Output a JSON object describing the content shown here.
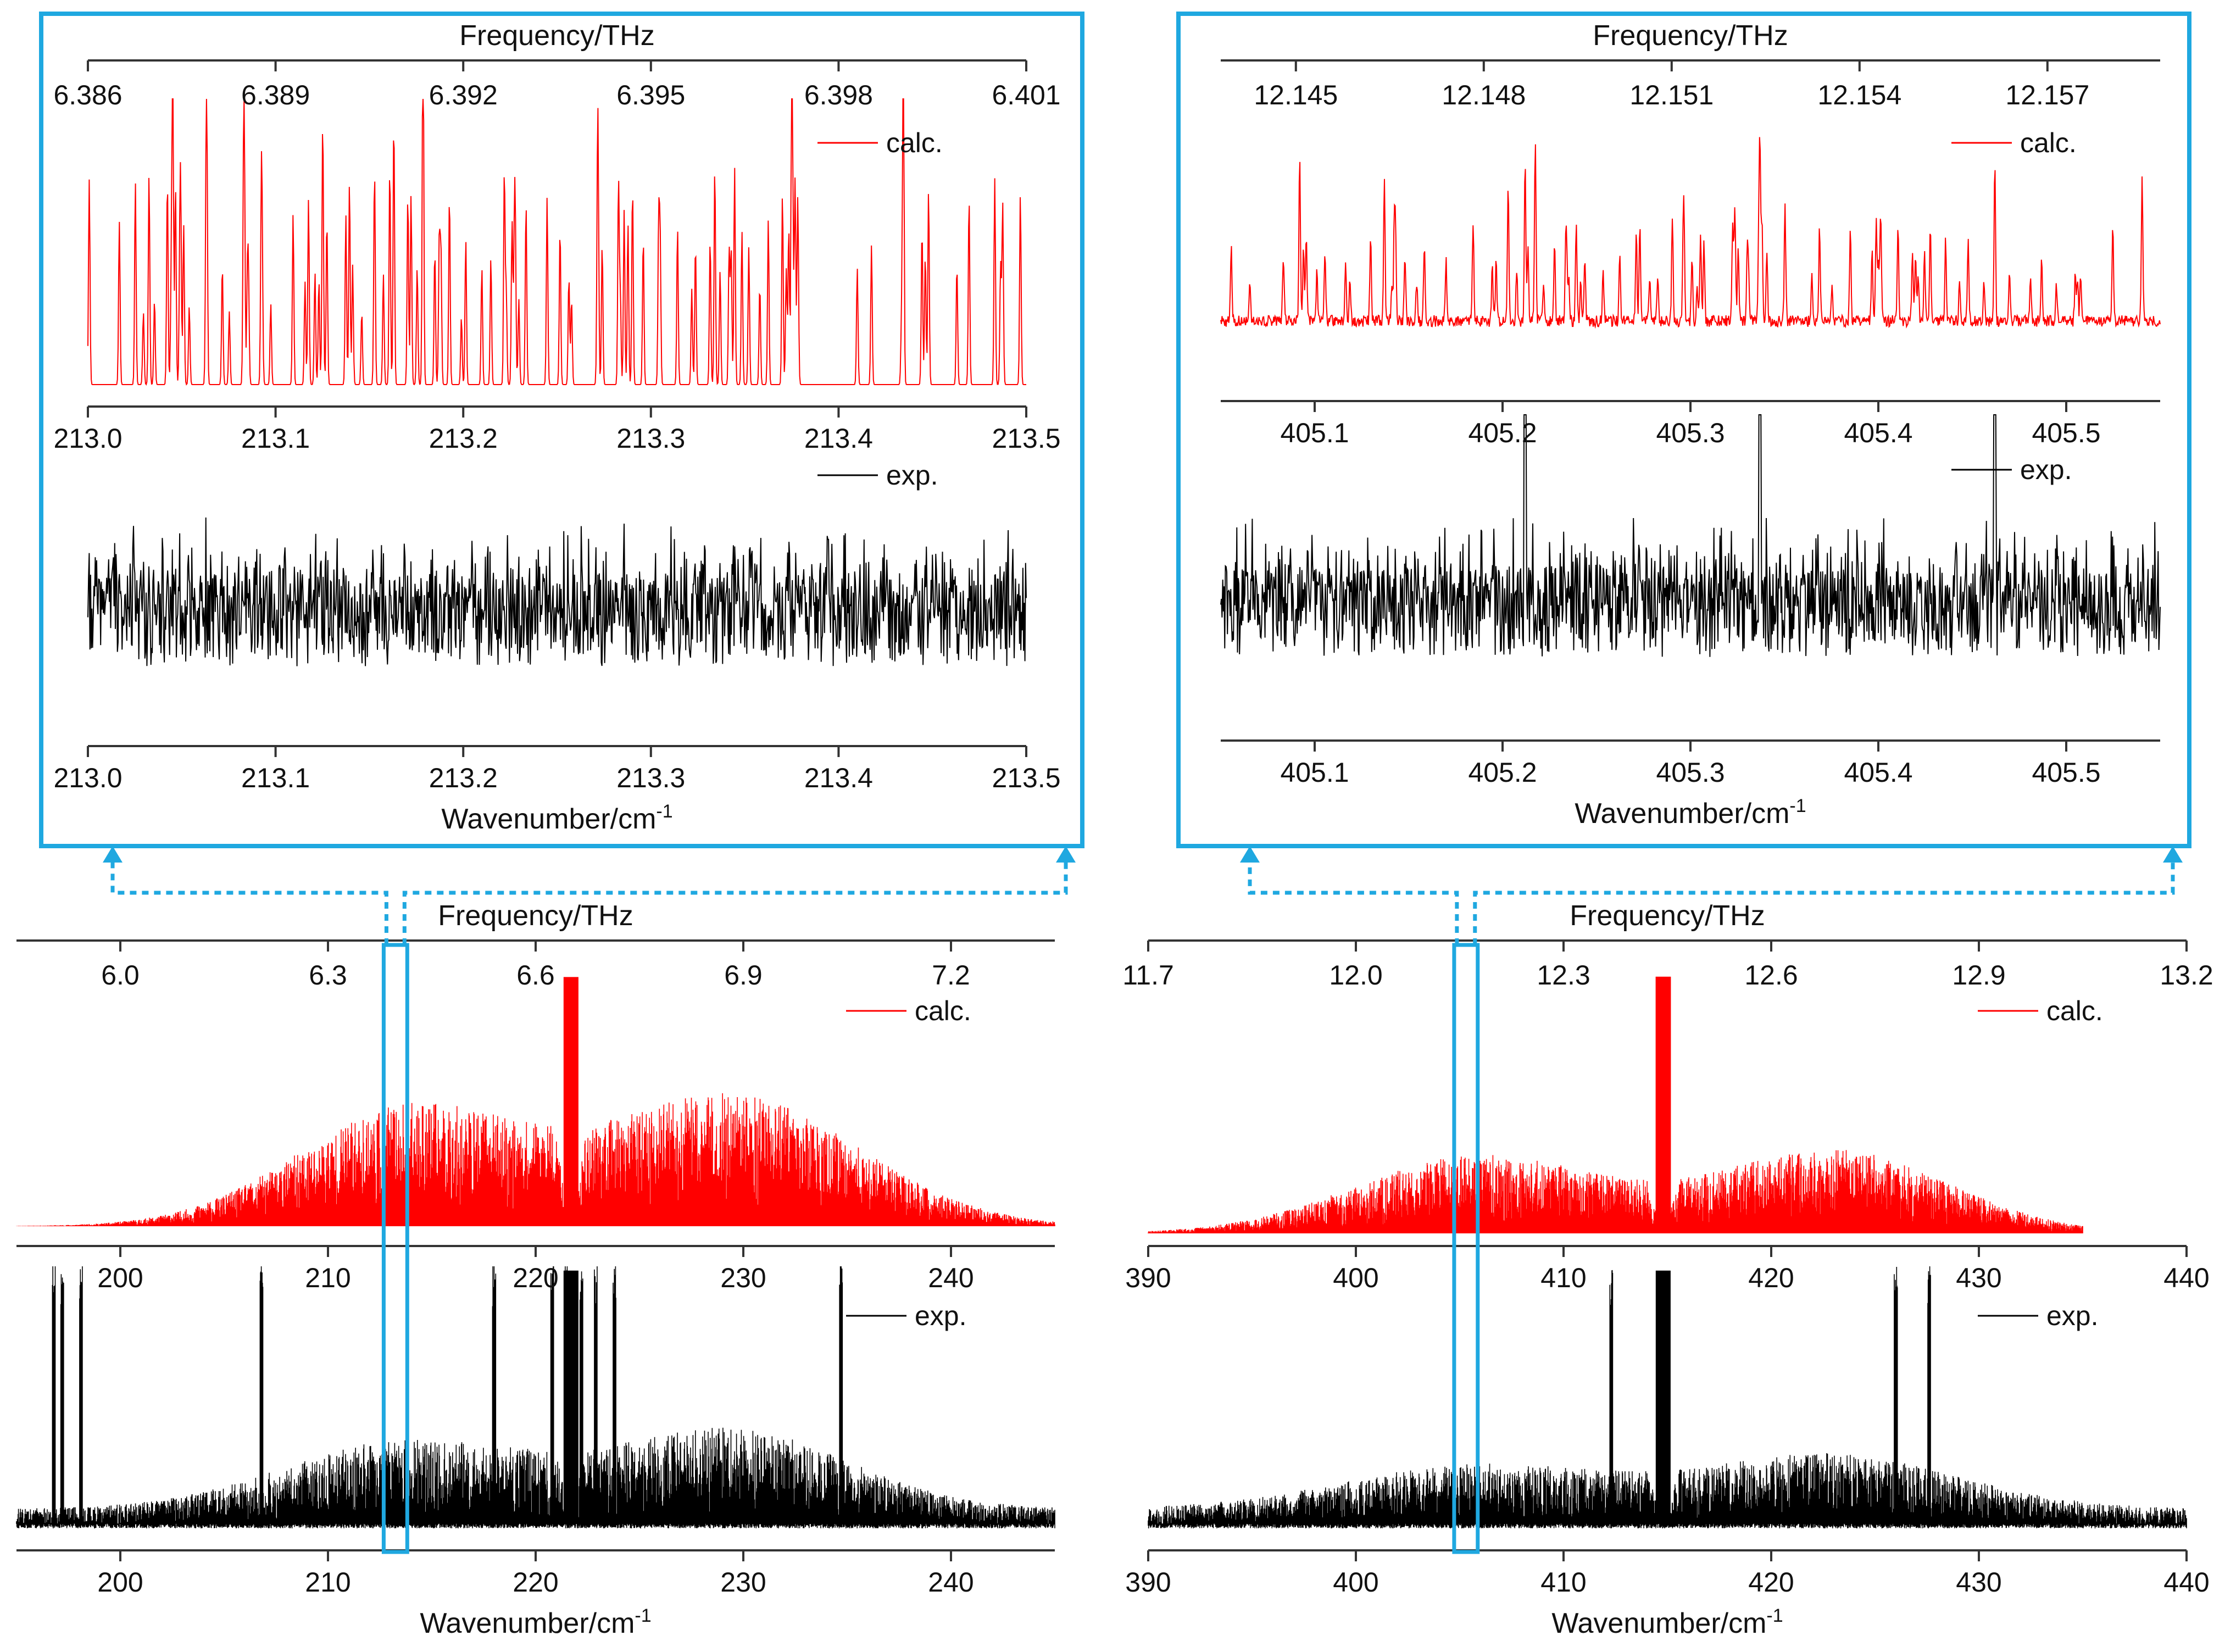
{
  "colors": {
    "calc": "#ff0000",
    "exp": "#000000",
    "highlight": "#1fa8e0",
    "axis": "#333333"
  },
  "legend": {
    "calc_label": "calc.",
    "exp_label": "exp."
  },
  "chart_data": [
    {
      "id": "bottom-left",
      "type": "line",
      "x_title": "Wavenumber/cm",
      "x_title_sup": "-1",
      "top_axis_title": "Frequency/THz",
      "x_range": [
        195,
        245
      ],
      "bottom_ticks": [
        "200",
        "210",
        "220",
        "230",
        "240"
      ],
      "mid_ticks": [
        "200",
        "210",
        "220",
        "230",
        "240"
      ],
      "top_ticks": [
        "6.0",
        "6.3",
        "6.6",
        "6.9",
        "7.2"
      ],
      "highlight_x_range": [
        213.0,
        213.5
      ],
      "series": [
        {
          "name": "calc.",
          "profile": "calc",
          "center": 221.7,
          "extent": [
            195,
            245
          ],
          "lobes": [
            {
              "c": 214.0,
              "w": 5.5,
              "h": 0.5
            },
            {
              "c": 229.5,
              "w": 6.0,
              "h": 0.55
            }
          ]
        },
        {
          "name": "exp.",
          "profile": "exp",
          "center": 221.7,
          "extent": [
            195,
            245
          ],
          "lobes": [
            {
              "c": 214.0,
              "w": 6.0,
              "h": 0.28
            },
            {
              "c": 229.5,
              "w": 5.5,
              "h": 0.32
            }
          ],
          "spikes": [
            196.8,
            197.2,
            198.1,
            206.8,
            218.0,
            220.8,
            221.5,
            222.2,
            222.9,
            223.8,
            234.7
          ]
        }
      ]
    },
    {
      "id": "bottom-right",
      "type": "line",
      "x_title": "Wavenumber/cm",
      "x_title_sup": "-1",
      "top_axis_title": "Frequency/THz",
      "x_range": [
        390,
        440
      ],
      "bottom_ticks": [
        "390",
        "400",
        "410",
        "420",
        "430",
        "440"
      ],
      "mid_ticks": [
        "390",
        "400",
        "410",
        "420",
        "430",
        "440"
      ],
      "top_ticks": [
        "11.7",
        "12.0",
        "12.3",
        "12.6",
        "12.9",
        "13.2"
      ],
      "highlight_x_range": [
        405.05,
        405.55
      ],
      "series": [
        {
          "name": "calc.",
          "profile": "calc",
          "center": 414.8,
          "extent": [
            390,
            435
          ],
          "lobes": [
            {
              "c": 406.0,
              "w": 6.0,
              "h": 0.32
            },
            {
              "c": 423.0,
              "w": 5.5,
              "h": 0.34
            }
          ]
        },
        {
          "name": "exp.",
          "profile": "exp",
          "center": 414.8,
          "extent": [
            390,
            440
          ],
          "lobes": [
            {
              "c": 406.0,
              "w": 6.5,
              "h": 0.18
            },
            {
              "c": 423.0,
              "w": 6.0,
              "h": 0.22
            }
          ],
          "spikes": [
            412.3,
            426.0,
            427.6
          ]
        }
      ]
    },
    {
      "id": "top-left",
      "type": "line",
      "x_title": "Wavenumber/cm",
      "x_title_sup": "-1",
      "top_axis_title": "Frequency/THz",
      "x_range": [
        213.0,
        213.5
      ],
      "bottom_ticks": [
        "213.0",
        "213.1",
        "213.2",
        "213.3",
        "213.4",
        "213.5"
      ],
      "mid_ticks": [
        "213.0",
        "213.1",
        "213.2",
        "213.3",
        "213.4",
        "213.5"
      ],
      "top_ticks": [
        "6.386",
        "6.389",
        "6.392",
        "6.395",
        "6.398",
        "6.401"
      ],
      "series": [
        {
          "name": "calc.",
          "profile": "lines"
        },
        {
          "name": "exp.",
          "profile": "noise"
        }
      ]
    },
    {
      "id": "top-right",
      "type": "line",
      "x_title": "Wavenumber/cm",
      "x_title_sup": "-1",
      "top_axis_title": "Frequency/THz",
      "x_range": [
        405.05,
        405.55
      ],
      "bottom_ticks": [
        "405.1",
        "405.2",
        "405.3",
        "405.4",
        "405.5"
      ],
      "mid_ticks": [
        "405.1",
        "405.2",
        "405.3",
        "405.4",
        "405.5"
      ],
      "top_ticks": [
        "12.145",
        "12.148",
        "12.151",
        "12.154",
        "12.157"
      ],
      "series": [
        {
          "name": "calc.",
          "profile": "lines",
          "strong_lines": [
            405.092,
            405.212,
            405.337,
            405.462
          ]
        },
        {
          "name": "exp.",
          "profile": "noise",
          "strong_lines": [
            405.212,
            405.337,
            405.462
          ]
        }
      ]
    }
  ]
}
